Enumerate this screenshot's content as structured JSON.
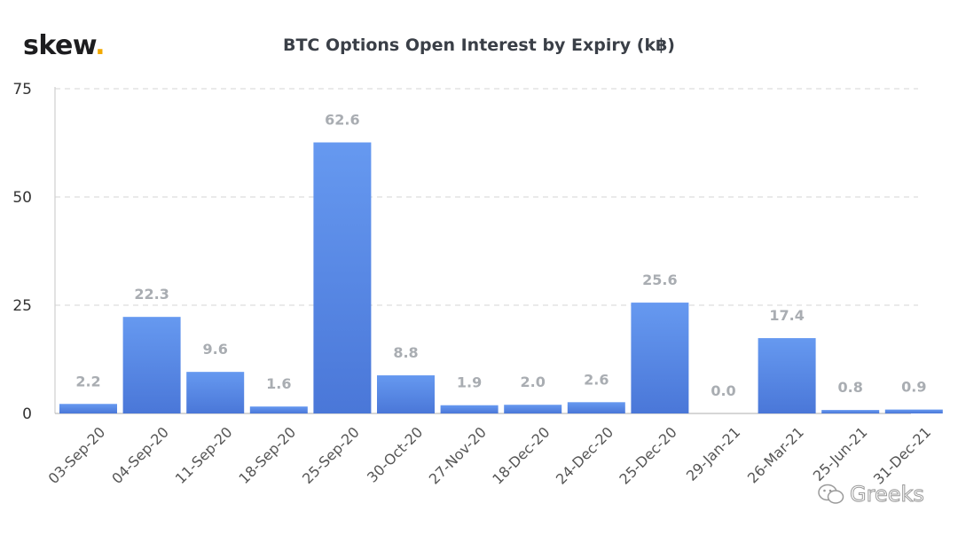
{
  "brand": {
    "name": "skew",
    "dot": "."
  },
  "watermark": {
    "text": "Greeks",
    "icon": "wechat-icon"
  },
  "colors": {
    "bar_top": "#6699f0",
    "bar_bottom": "#4a77d8",
    "brand_dot": "#f2a900",
    "label": "#a9adb2",
    "grid": "#dddddd"
  },
  "chart_data": {
    "type": "bar",
    "title": "BTC Options Open Interest by Expiry (k฿)",
    "xlabel": "",
    "ylabel": "",
    "categories": [
      "03-Sep-20",
      "04-Sep-20",
      "11-Sep-20",
      "18-Sep-20",
      "25-Sep-20",
      "30-Oct-20",
      "27-Nov-20",
      "18-Dec-20",
      "24-Dec-20",
      "25-Dec-20",
      "29-Jan-21",
      "26-Mar-21",
      "25-Jun-21",
      "31-Dec-21"
    ],
    "values": [
      2.2,
      22.3,
      9.6,
      1.6,
      62.6,
      8.8,
      1.9,
      2.0,
      2.6,
      25.6,
      0.0,
      17.4,
      0.8,
      0.9
    ],
    "value_labels": [
      "2.2",
      "22.3",
      "9.6",
      "1.6",
      "62.6",
      "8.8",
      "1.9",
      "2.0",
      "2.6",
      "25.6",
      "0.0",
      "17.4",
      "0.8",
      "0.9"
    ],
    "yticks": [
      0,
      25,
      50,
      75
    ],
    "ylim": [
      0,
      75
    ],
    "grid": true,
    "gridlines": "dashed"
  }
}
